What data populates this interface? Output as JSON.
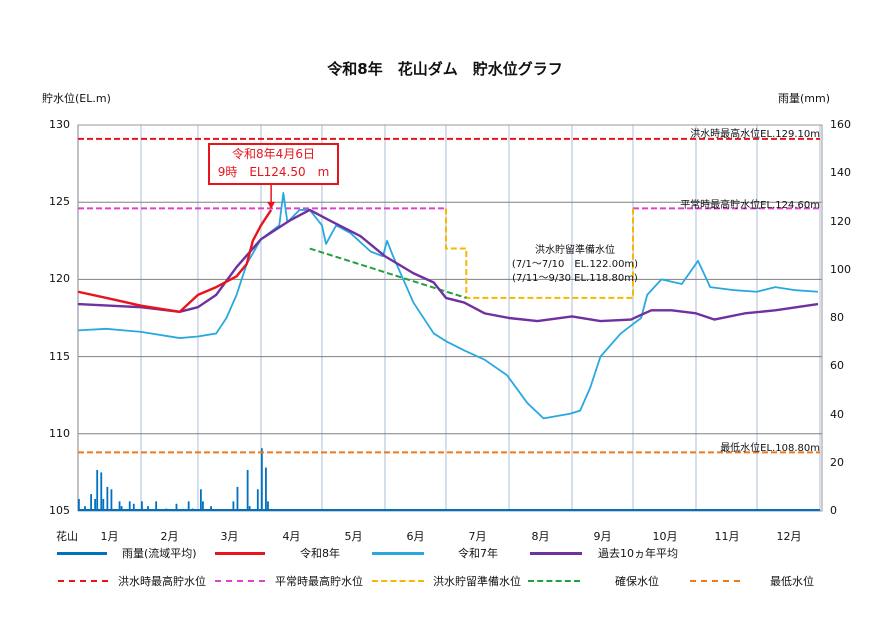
{
  "chart_data": {
    "type": "line",
    "title": "令和8年　花山ダム　貯水位グラフ",
    "ylabel": "貯水位(EL.m)",
    "y2label": "雨量(mm)",
    "xlabel_prefix": "花山",
    "ylim": [
      105,
      130
    ],
    "yticks": [
      "105",
      "110",
      "115",
      "120",
      "125",
      "130"
    ],
    "y2lim": [
      0,
      160
    ],
    "y2ticks": [
      "0",
      "20",
      "40",
      "60",
      "80",
      "100",
      "120",
      "140",
      "160"
    ],
    "months": [
      "1月",
      "2月",
      "3月",
      "4月",
      "5月",
      "6月",
      "7月",
      "8月",
      "9月",
      "10月",
      "11月",
      "12月"
    ],
    "grid": true,
    "series": [
      {
        "name": "令和7年",
        "color": "#29a8e0",
        "points": [
          [
            "1/1",
            116.7
          ],
          [
            "1/15",
            116.8
          ],
          [
            "2/1",
            116.6
          ],
          [
            "2/20",
            116.2
          ],
          [
            "3/1",
            116.3
          ],
          [
            "3/10",
            116.5
          ],
          [
            "3/15",
            117.5
          ],
          [
            "3/20",
            119.0
          ],
          [
            "3/25",
            121.0
          ],
          [
            "4/1",
            122.6
          ],
          [
            "4/10",
            123.5
          ],
          [
            "4/12",
            125.6
          ],
          [
            "4/14",
            123.7
          ],
          [
            "4/20",
            124.5
          ],
          [
            "4/25",
            124.5
          ],
          [
            "5/1",
            123.5
          ],
          [
            "5/3",
            122.3
          ],
          [
            "5/8",
            123.5
          ],
          [
            "5/15",
            123.0
          ],
          [
            "5/25",
            121.8
          ],
          [
            "5/31",
            121.5
          ],
          [
            "6/2",
            122.5
          ],
          [
            "6/5",
            121.5
          ],
          [
            "6/15",
            118.5
          ],
          [
            "6/25",
            116.5
          ],
          [
            "7/1",
            116.0
          ],
          [
            "7/10",
            115.4
          ],
          [
            "7/20",
            114.8
          ],
          [
            "7/31",
            113.8
          ],
          [
            "8/10",
            112.0
          ],
          [
            "8/18",
            111.0
          ],
          [
            "8/31",
            111.3
          ],
          [
            "9/5",
            111.5
          ],
          [
            "9/10",
            113.0
          ],
          [
            "9/15",
            115.0
          ],
          [
            "9/25",
            116.5
          ],
          [
            "9/30",
            117.0
          ],
          [
            "10/5",
            117.5
          ],
          [
            "10/8",
            119.0
          ],
          [
            "10/15",
            120.0
          ],
          [
            "10/25",
            119.7
          ],
          [
            "11/2",
            121.2
          ],
          [
            "11/8",
            119.5
          ],
          [
            "11/20",
            119.3
          ],
          [
            "12/1",
            119.2
          ],
          [
            "12/10",
            119.5
          ],
          [
            "12/20",
            119.3
          ],
          [
            "12/31",
            119.2
          ]
        ]
      },
      {
        "name": "過去10ヵ年平均",
        "color": "#7030a0",
        "points": [
          [
            "1/1",
            118.4
          ],
          [
            "2/1",
            118.2
          ],
          [
            "2/20",
            117.9
          ],
          [
            "3/1",
            118.2
          ],
          [
            "3/10",
            119.0
          ],
          [
            "3/20",
            120.8
          ],
          [
            "4/1",
            122.6
          ],
          [
            "4/15",
            123.8
          ],
          [
            "4/25",
            124.5
          ],
          [
            "5/5",
            123.8
          ],
          [
            "5/20",
            122.8
          ],
          [
            "6/1",
            121.5
          ],
          [
            "6/15",
            120.4
          ],
          [
            "6/25",
            119.8
          ],
          [
            "7/1",
            118.8
          ],
          [
            "7/10",
            118.5
          ],
          [
            "7/20",
            117.8
          ],
          [
            "8/1",
            117.5
          ],
          [
            "8/15",
            117.3
          ],
          [
            "9/1",
            117.6
          ],
          [
            "9/15",
            117.3
          ],
          [
            "9/30",
            117.4
          ],
          [
            "10/10",
            118.0
          ],
          [
            "10/20",
            118.0
          ],
          [
            "11/1",
            117.8
          ],
          [
            "11/10",
            117.4
          ],
          [
            "11/25",
            117.8
          ],
          [
            "12/10",
            118.0
          ],
          [
            "12/31",
            118.4
          ]
        ]
      },
      {
        "name": "令和8年",
        "color": "#e8141c",
        "points": [
          [
            "1/1",
            119.2
          ],
          [
            "1/15",
            118.8
          ],
          [
            "2/1",
            118.3
          ],
          [
            "2/20",
            117.9
          ],
          [
            "3/1",
            119.0
          ],
          [
            "3/10",
            119.5
          ],
          [
            "3/20",
            120.2
          ],
          [
            "3/25",
            121.0
          ],
          [
            "3/28",
            122.5
          ],
          [
            "4/1",
            123.5
          ],
          [
            "4/6",
            124.5
          ]
        ]
      }
    ],
    "rainfall": {
      "name": "雨量(流域平均)",
      "color": "#0070c0",
      "bars": [
        [
          "1/1",
          5
        ],
        [
          "1/4",
          2
        ],
        [
          "1/7",
          7
        ],
        [
          "1/9",
          5
        ],
        [
          "1/10",
          17
        ],
        [
          "1/12",
          16
        ],
        [
          "1/13",
          5
        ],
        [
          "1/15",
          10
        ],
        [
          "1/17",
          9
        ],
        [
          "1/21",
          4
        ],
        [
          "1/22",
          2
        ],
        [
          "1/26",
          4
        ],
        [
          "1/28",
          3
        ],
        [
          "2/1",
          4
        ],
        [
          "2/4",
          2
        ],
        [
          "2/8",
          4
        ],
        [
          "2/13",
          1
        ],
        [
          "2/18",
          3
        ],
        [
          "2/24",
          4
        ],
        [
          "2/26",
          1
        ],
        [
          "3/2",
          9
        ],
        [
          "3/3",
          4
        ],
        [
          "3/7",
          2
        ],
        [
          "3/18",
          4
        ],
        [
          "3/20",
          10
        ],
        [
          "3/25",
          17
        ],
        [
          "3/26",
          2
        ],
        [
          "3/30",
          9
        ],
        [
          "4/1",
          26
        ],
        [
          "4/3",
          18
        ],
        [
          "4/4",
          4
        ]
      ]
    },
    "reference_lines": [
      {
        "name": "洪水時最高貯水位",
        "color": "#e8141c",
        "segments": [
          [
            "1/1",
            "12/31",
            129.1
          ]
        ],
        "label": "洪水時最高水位EL.129.10m"
      },
      {
        "name": "平常時最高貯水位",
        "color": "#e040d0",
        "segments": [
          [
            "1/1",
            "6/30",
            124.6
          ],
          [
            "10/1",
            "12/31",
            124.6
          ]
        ],
        "label": "平常時最高貯水位EL.124.60m"
      },
      {
        "name": "洪水貯留準備水位",
        "color": "#f5b800",
        "segments": [
          [
            "7/1",
            "7/10",
            122.0
          ],
          [
            "7/11",
            "9/30",
            118.8
          ]
        ],
        "label_lines": [
          "洪水貯留準備水位",
          "(7/1～7/10　EL.122.00m)",
          "(7/11～9/30 EL.118.80m)"
        ]
      },
      {
        "name": "確保水位",
        "color": "#22a040",
        "from": [
          "4/25",
          122.0
        ],
        "to": [
          "7/10",
          118.8
        ]
      },
      {
        "name": "最低水位",
        "color": "#e87a20",
        "segments": [
          [
            "1/1",
            "12/31",
            108.8
          ]
        ],
        "label": "最低水位EL.108.80m"
      }
    ],
    "annotation": {
      "line1": "令和8年4月6日",
      "line2": "9時　EL124.50　m",
      "date": "4/6",
      "value": 124.5,
      "color": "#e8141c"
    }
  }
}
